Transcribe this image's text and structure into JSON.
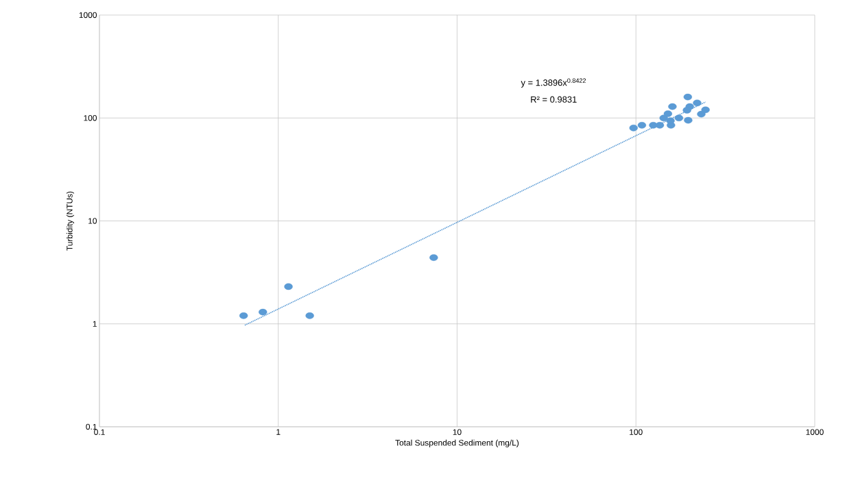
{
  "chart_data": {
    "type": "scatter",
    "xlabel": "Total Suspended Sediment (mg/L)",
    "ylabel": "Turbidity (NTUs)",
    "log": "xy",
    "grid": true,
    "xlim": [
      0.1,
      1000
    ],
    "ylim": [
      0.1,
      1000
    ],
    "xticks": [
      0.1,
      1,
      10,
      100,
      1000
    ],
    "yticks": [
      0.1,
      1,
      10,
      100,
      1000
    ],
    "annotations": [
      "y = 1.3896x$^{0.8422}$",
      "R² = 0.9831"
    ],
    "series": [
      {
        "type": "scatter",
        "marker": "circle",
        "color": "#5b9bd5",
        "x": [
          0.64,
          0.82,
          1.14,
          1.5,
          7.4,
          97,
          108,
          125,
          136,
          143,
          151,
          160,
          157,
          156,
          174,
          195,
          200,
          193,
          196,
          220,
          232,
          245
        ],
        "values": [
          1.2,
          1.3,
          2.3,
          1.2,
          4.4,
          80,
          85,
          85,
          85,
          100,
          110,
          129,
          85,
          94,
          100,
          160,
          129,
          119,
          95,
          140,
          109,
          120
        ]
      },
      {
        "type": "line",
        "color": "#5b9bd5",
        "line_style": "dotted",
        "marker": "none",
        "x": [
          0.65,
          245
        ],
        "values": [
          0.97,
          143
        ]
      }
    ]
  }
}
